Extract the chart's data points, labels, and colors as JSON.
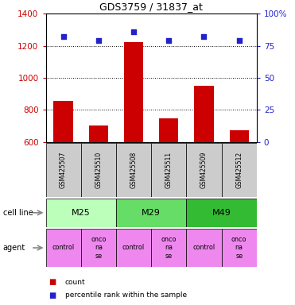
{
  "title": "GDS3759 / 31837_at",
  "samples": [
    "GSM425507",
    "GSM425510",
    "GSM425508",
    "GSM425511",
    "GSM425509",
    "GSM425512"
  ],
  "counts": [
    855,
    700,
    1225,
    745,
    950,
    670
  ],
  "percentiles": [
    82,
    79,
    86,
    79,
    82,
    79
  ],
  "ylim_left": [
    600,
    1400
  ],
  "ylim_right": [
    0,
    100
  ],
  "yticks_left": [
    600,
    800,
    1000,
    1200,
    1400
  ],
  "yticks_right": [
    0,
    25,
    50,
    75,
    100
  ],
  "ytick_labels_right": [
    "0",
    "25",
    "50",
    "75",
    "100%"
  ],
  "cell_lines": [
    [
      "M25",
      0,
      2
    ],
    [
      "M29",
      2,
      4
    ],
    [
      "M49",
      4,
      6
    ]
  ],
  "cl_colors": [
    "#bbffbb",
    "#66dd66",
    "#33bb33"
  ],
  "agent_display": [
    "control",
    "onco\nna\nse",
    "control",
    "onco\nna\nse",
    "control",
    "onco\nna\nse"
  ],
  "agent_color": "#ee88ee",
  "bar_color": "#cc0000",
  "dot_color": "#2222cc",
  "sample_bg": "#cccccc",
  "left_axis_color": "#cc0000",
  "right_axis_color": "#2222cc",
  "legend_count_color": "#cc0000",
  "legend_pct_color": "#2222cc",
  "grid_yticks": [
    800,
    1000,
    1200
  ]
}
